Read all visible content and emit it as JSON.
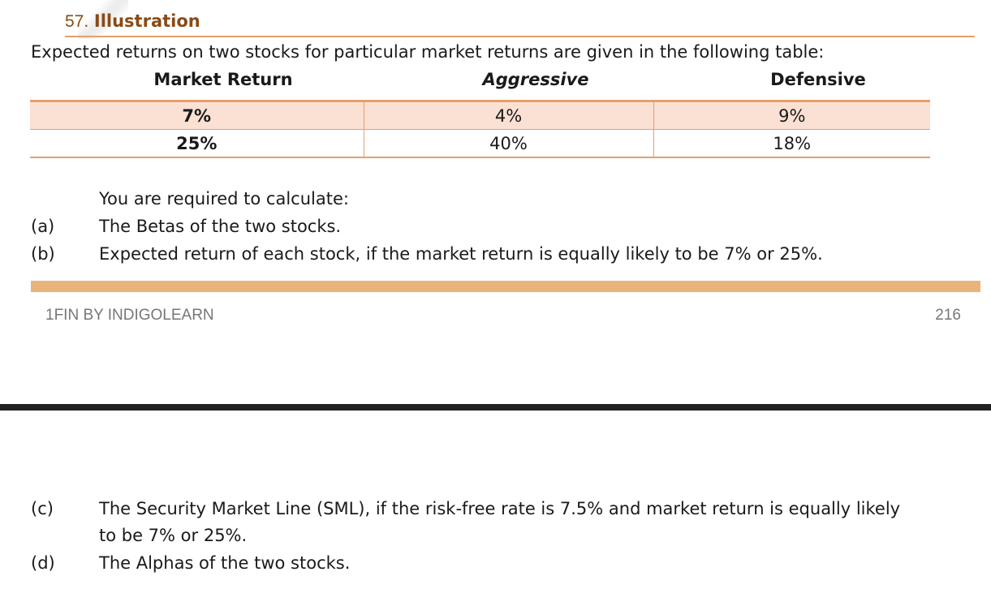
{
  "heading": {
    "number": "57.",
    "title": "Illustration"
  },
  "intro": "Expected returns on two stocks for particular market returns are given in the following table:",
  "table": {
    "headers": [
      "Market Return",
      "Aggressive",
      "Defensive"
    ],
    "rows": [
      [
        "7%",
        "4%",
        "9%"
      ],
      [
        "25%",
        "40%",
        "18%"
      ]
    ]
  },
  "required": "You are required to calculate:",
  "items": [
    {
      "label": "(a)",
      "text": "The Betas of the two stocks."
    },
    {
      "label": "(b)",
      "text": "Expected return of each stock, if the market return is equally likely to be 7% or 25%."
    },
    {
      "label": "(c)",
      "text": "The Security Market Line (SML), if the risk-free rate is 7.5% and market return is equally likely",
      "text2": "to be 7% or 25%."
    },
    {
      "label": "(d)",
      "text": "The Alphas of the two stocks."
    }
  ],
  "footer": {
    "brand": "1FIN BY INDIGOLEARN",
    "page": "216"
  },
  "colors": {
    "accent": "#e6a06b",
    "heading": "#8a4a14",
    "row_fill": "#fbe0d4",
    "band": "#e8b47c"
  }
}
